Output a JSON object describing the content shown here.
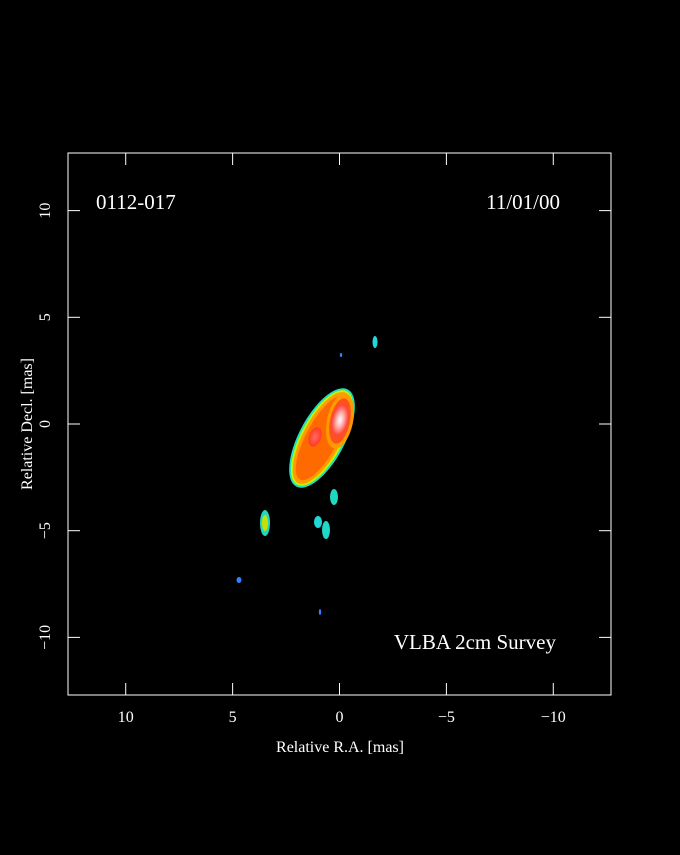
{
  "chart_data": {
    "type": "image",
    "source": "0112-017",
    "date": "11/01/00",
    "survey": "VLBA 2cm Survey",
    "xlabel": "Relative R.A. [mas]",
    "ylabel": "Relative Decl. [mas]",
    "xlim": [
      12.7,
      -12.7
    ],
    "ylim": [
      -12.7,
      12.7
    ],
    "xticks": [
      10,
      5,
      0,
      {
        "value": -5,
        "label": "−5"
      },
      {
        "value": -10,
        "label": "−10"
      }
    ],
    "yticks": [
      {
        "value": -10,
        "label": "−10"
      },
      {
        "value": -5,
        "label": "−5"
      },
      0,
      5,
      10
    ]
  }
}
